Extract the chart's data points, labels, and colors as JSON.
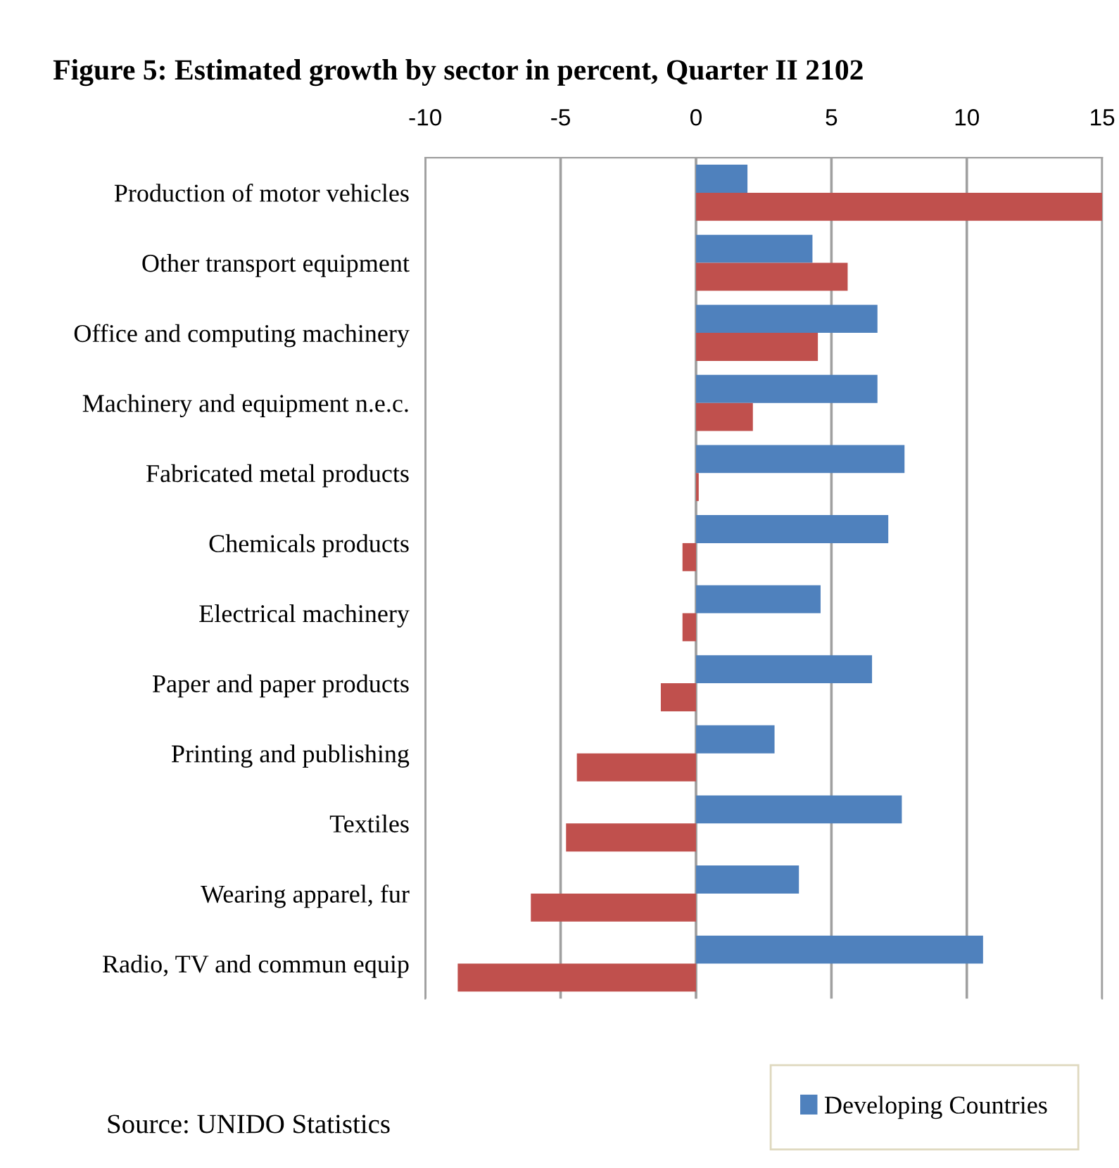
{
  "chart_data": {
    "type": "bar",
    "orientation": "horizontal",
    "title": "Figure 5: Estimated growth by sector in percent, Quarter II 2102",
    "categories": [
      "Production of motor vehicles",
      "Other transport equipment",
      "Office and computing machinery",
      "Machinery and equipment n.e.c.",
      "Fabricated metal products",
      "Chemicals products",
      "Electrical machinery",
      "Paper and paper products",
      "Printing and publishing",
      "Textiles",
      "Wearing apparel, fur",
      "Radio, TV and commun equip"
    ],
    "series": [
      {
        "name": "Developing Countries",
        "color": "#4f81bd",
        "values": [
          1.9,
          4.3,
          6.7,
          6.7,
          7.7,
          7.1,
          4.6,
          6.5,
          2.9,
          7.6,
          3.8,
          10.6
        ]
      },
      {
        "color": "#c0504d",
        "values": [
          15,
          5.6,
          4.5,
          2.1,
          0.1,
          -0.5,
          -0.5,
          -1.3,
          -4.4,
          -4.8,
          -6.1,
          -8.8
        ]
      }
    ],
    "xlim": [
      -10,
      15
    ],
    "xticks": [
      -10,
      -5,
      0,
      5,
      10,
      15
    ],
    "grid": "x",
    "legend": "bottom right",
    "annotations": [
      "Source: UNIDO Statistics"
    ]
  }
}
